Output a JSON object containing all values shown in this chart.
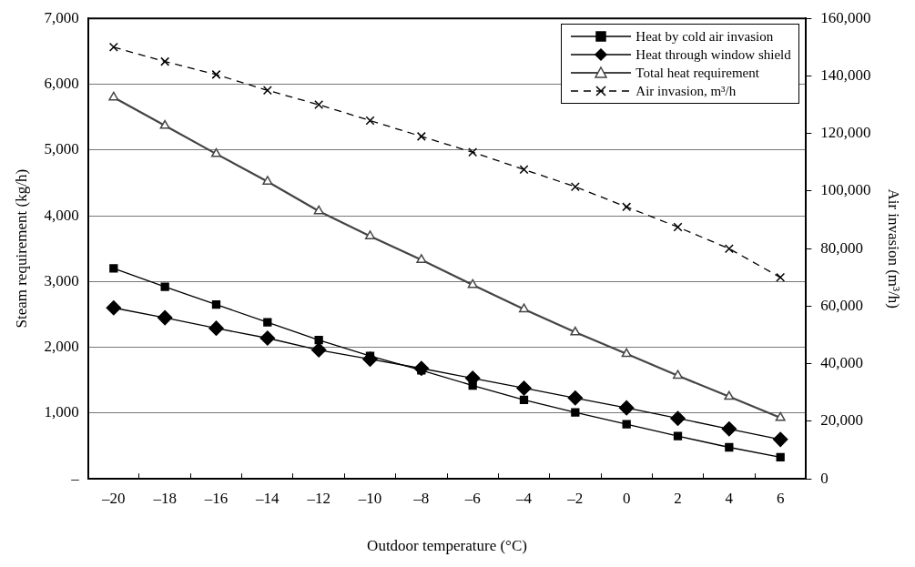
{
  "chart_data": {
    "type": "line",
    "xlabel": "Outdoor temperature (°C)",
    "ylabel": "Steam requirement (kg/h)",
    "y2label": "Air invasion (m³/h)",
    "categories": [
      "–20",
      "–18",
      "–16",
      "–14",
      "–12",
      "–10",
      "–8",
      "–6",
      "–4",
      "–2",
      "0",
      "2",
      "4",
      "6"
    ],
    "series": [
      {
        "name": "Heat by cold air invasion",
        "color": "#000000",
        "marker": "square",
        "line_style": "solid",
        "values": [
          3200,
          2920,
          2650,
          2380,
          2110,
          1870,
          1650,
          1420,
          1200,
          1010,
          830,
          650,
          480,
          330
        ]
      },
      {
        "name": "Heat through window shield",
        "color": "#000000",
        "marker": "diamond",
        "line_style": "solid",
        "values": [
          2600,
          2450,
          2290,
          2140,
          1960,
          1820,
          1680,
          1530,
          1380,
          1230,
          1080,
          920,
          760,
          600
        ]
      },
      {
        "name": "Total heat requirement",
        "color": "#444444",
        "marker": "triangle",
        "line_style": "solid",
        "values": [
          5800,
          5370,
          4940,
          4520,
          4070,
          3690,
          3330,
          2950,
          2580,
          2230,
          1900,
          1570,
          1250,
          930
        ]
      },
      {
        "name": "Air invasion, m³/h",
        "color": "#000000",
        "marker": "cross",
        "line_style": "dashed",
        "axis": "y2",
        "values": [
          150000,
          145000,
          140500,
          135000,
          130000,
          124500,
          119000,
          113500,
          107500,
          101500,
          94500,
          87500,
          80000,
          70000
        ]
      }
    ],
    "ylim": [
      0,
      7000
    ],
    "yticks": [
      {
        "value": 0,
        "label": "–"
      },
      {
        "value": 1000,
        "label": "1,000"
      },
      {
        "value": 2000,
        "label": "2,000"
      },
      {
        "value": 3000,
        "label": "3,000"
      },
      {
        "value": 4000,
        "label": "4,000"
      },
      {
        "value": 5000,
        "label": "5,000"
      },
      {
        "value": 6000,
        "label": "6,000"
      },
      {
        "value": 7000,
        "label": "7,000"
      }
    ],
    "y2lim": [
      0,
      160000
    ],
    "y2ticks": [
      0,
      {
        "value": 20000,
        "label": "20,000"
      },
      {
        "value": 40000,
        "label": "40,000"
      },
      {
        "value": 60000,
        "label": "60,000"
      },
      {
        "value": 80000,
        "label": "80,000"
      },
      {
        "value": 100000,
        "label": "100,000"
      },
      {
        "value": 120000,
        "label": "120,000"
      },
      {
        "value": 140000,
        "label": "140,000"
      },
      {
        "value": 160000,
        "label": "160,000"
      }
    ],
    "grid": "y",
    "legend": "top right"
  }
}
